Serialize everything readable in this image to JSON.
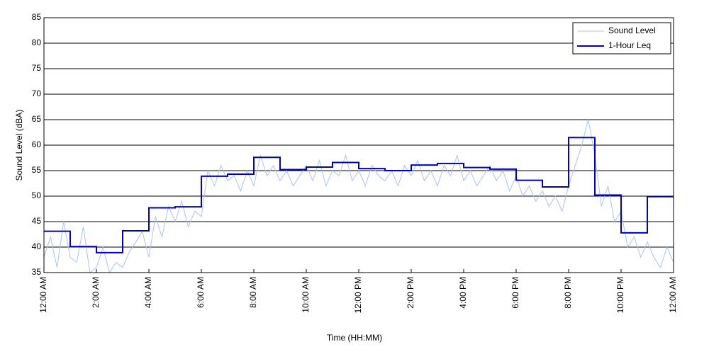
{
  "chart_data": {
    "type": "line",
    "xlabel": "Time (HH:MM)",
    "ylabel": "Sound Level (dBA)",
    "xlim": [
      0,
      24
    ],
    "ylim": [
      35,
      85
    ],
    "xticks": [
      {
        "value": 0,
        "label": "12:00 AM"
      },
      {
        "value": 2,
        "label": "2:00 AM"
      },
      {
        "value": 4,
        "label": "4:00 AM"
      },
      {
        "value": 6,
        "label": "6:00 AM"
      },
      {
        "value": 8,
        "label": "8:00 AM"
      },
      {
        "value": 10,
        "label": "10:00 AM"
      },
      {
        "value": 12,
        "label": "12:00 PM"
      },
      {
        "value": 14,
        "label": "2:00 PM"
      },
      {
        "value": 16,
        "label": "4:00 PM"
      },
      {
        "value": 18,
        "label": "6:00 PM"
      },
      {
        "value": 20,
        "label": "8:00 PM"
      },
      {
        "value": 22,
        "label": "10:00 PM"
      },
      {
        "value": 24,
        "label": "12:00 AM"
      }
    ],
    "yticks": [
      35,
      40,
      45,
      50,
      55,
      60,
      65,
      70,
      75,
      80,
      85
    ],
    "grid": "y",
    "legend": "upper right",
    "series": [
      {
        "name": "Sound Level",
        "color": "#a8c4f4",
        "step": false,
        "x": [
          0,
          0.25,
          0.5,
          0.75,
          1,
          1.25,
          1.5,
          1.75,
          2,
          2.25,
          2.5,
          2.75,
          3,
          3.25,
          3.5,
          3.75,
          4,
          4.25,
          4.5,
          4.75,
          5,
          5.25,
          5.5,
          5.75,
          6,
          6.25,
          6.5,
          6.75,
          7,
          7.25,
          7.5,
          7.75,
          8,
          8.25,
          8.5,
          8.75,
          9,
          9.25,
          9.5,
          9.75,
          10,
          10.25,
          10.5,
          10.75,
          11,
          11.25,
          11.5,
          11.75,
          12,
          12.25,
          12.5,
          12.75,
          13,
          13.25,
          13.5,
          13.75,
          14,
          14.25,
          14.5,
          14.75,
          15,
          15.25,
          15.5,
          15.75,
          16,
          16.25,
          16.5,
          16.75,
          17,
          17.25,
          17.5,
          17.75,
          18,
          18.25,
          18.5,
          18.75,
          19,
          19.25,
          19.5,
          19.75,
          20,
          20.25,
          20.5,
          20.75,
          21,
          21.25,
          21.5,
          21.75,
          22,
          22.25,
          22.5,
          22.75,
          23,
          23.25,
          23.5,
          23.75,
          24
        ],
        "values": [
          38,
          42,
          36,
          45,
          38,
          37,
          44,
          35,
          36,
          40,
          35,
          37,
          36,
          39,
          41,
          43,
          38,
          46,
          42,
          48,
          45,
          49,
          44,
          47,
          46,
          55,
          52,
          56,
          53,
          54,
          51,
          55,
          52,
          58,
          54,
          56,
          53,
          55,
          52,
          54,
          56,
          53,
          57,
          52,
          55,
          54,
          58,
          53,
          55,
          52,
          56,
          54,
          53,
          55,
          52,
          56,
          54,
          57,
          53,
          55,
          52,
          56,
          54,
          58,
          53,
          55,
          52,
          54,
          56,
          53,
          55,
          51,
          54,
          50,
          52,
          49,
          51,
          48,
          50,
          47,
          52,
          56,
          60,
          65,
          58,
          48,
          52,
          45,
          47,
          40,
          42,
          38,
          41,
          38,
          36,
          40,
          37
        ]
      },
      {
        "name": "1-Hour Leq",
        "color": "#0000c8",
        "step": true,
        "x": [
          0,
          1,
          2,
          3,
          4,
          5,
          6,
          7,
          8,
          9,
          10,
          11,
          12,
          13,
          14,
          15,
          16,
          17,
          18,
          19,
          20,
          21,
          22,
          23,
          24
        ],
        "values": [
          43.1,
          40.1,
          38.9,
          43.2,
          47.7,
          47.9,
          53.9,
          54.3,
          57.6,
          55.2,
          55.7,
          56.6,
          55.4,
          55.0,
          56.1,
          56.4,
          55.6,
          55.3,
          53.1,
          51.8,
          61.5,
          50.2,
          42.8,
          49.9,
          49.9
        ]
      }
    ]
  }
}
